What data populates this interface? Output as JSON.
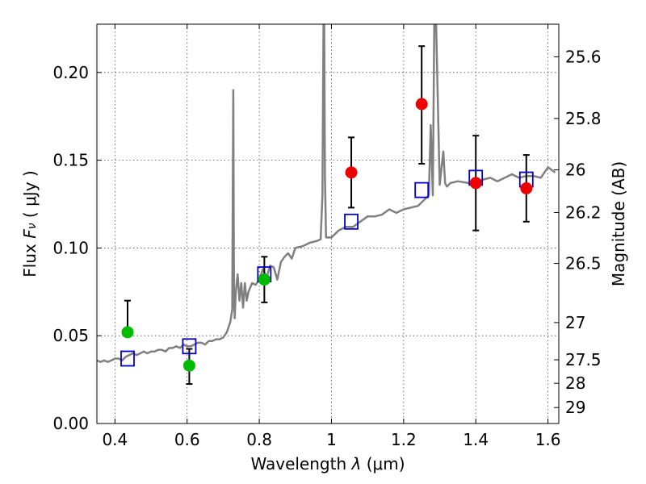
{
  "chart_data": {
    "type": "scatter",
    "xlabel": "Wavelength",
    "xlabel_symbol": "λ",
    "xlabel_unit": "(μm)",
    "ylabel": "Flux",
    "ylabel_symbol": "F",
    "ylabel_subscript": "ν",
    "ylabel_unit": "( μJy )",
    "y2label": "Magnitude (AB)",
    "xlim": [
      0.35,
      1.63
    ],
    "ylim": [
      0.0,
      0.2275
    ],
    "grid": true,
    "x_ticks": [
      0.4,
      0.6,
      0.8,
      1.0,
      1.2,
      1.4,
      1.6
    ],
    "x_tick_labels": [
      "0.4",
      "0.6",
      "0.8",
      "1",
      "1.2",
      "1.4",
      "1.6"
    ],
    "y_ticks": [
      0.0,
      0.05,
      0.1,
      0.15,
      0.2
    ],
    "y_tick_labels": [
      "0.00",
      "0.05",
      "0.10",
      "0.15",
      "0.20"
    ],
    "y2_ticks": [
      {
        "label": "25.6",
        "flux": 0.2089
      },
      {
        "label": "25.8",
        "flux": 0.1738
      },
      {
        "label": "26",
        "flux": 0.1445
      },
      {
        "label": "26.2",
        "flux": 0.1202
      },
      {
        "label": "26.5",
        "flux": 0.0912
      },
      {
        "label": "27",
        "flux": 0.0575
      },
      {
        "label": "27.5",
        "flux": 0.0363
      },
      {
        "label": "28",
        "flux": 0.0229
      },
      {
        "label": "29",
        "flux": 0.0091
      }
    ],
    "series": [
      {
        "kind": "line",
        "color": "#808080",
        "x": [
          0.35,
          0.36,
          0.37,
          0.38,
          0.39,
          0.4,
          0.41,
          0.42,
          0.43,
          0.44,
          0.45,
          0.46,
          0.47,
          0.48,
          0.49,
          0.5,
          0.51,
          0.52,
          0.53,
          0.54,
          0.55,
          0.56,
          0.57,
          0.58,
          0.59,
          0.6,
          0.61,
          0.62,
          0.63,
          0.64,
          0.65,
          0.66,
          0.67,
          0.68,
          0.69,
          0.7,
          0.71,
          0.72,
          0.725,
          0.728,
          0.73,
          0.732,
          0.735,
          0.74,
          0.745,
          0.75,
          0.755,
          0.76,
          0.765,
          0.77,
          0.78,
          0.79,
          0.8,
          0.81,
          0.82,
          0.83,
          0.84,
          0.85,
          0.86,
          0.87,
          0.88,
          0.89,
          0.9,
          0.92,
          0.94,
          0.96,
          0.97,
          0.975,
          0.978,
          0.98,
          0.982,
          0.985,
          0.99,
          1.0,
          1.02,
          1.04,
          1.06,
          1.08,
          1.1,
          1.12,
          1.14,
          1.16,
          1.18,
          1.2,
          1.22,
          1.24,
          1.26,
          1.27,
          1.275,
          1.278,
          1.281,
          1.285,
          1.29,
          1.3,
          1.31,
          1.315,
          1.32,
          1.33,
          1.35,
          1.38,
          1.4,
          1.42,
          1.44,
          1.46,
          1.48,
          1.5,
          1.52,
          1.54,
          1.56,
          1.58,
          1.6,
          1.62
        ],
        "y": [
          0.036,
          0.035,
          0.036,
          0.035,
          0.036,
          0.037,
          0.037,
          0.036,
          0.038,
          0.039,
          0.04,
          0.039,
          0.04,
          0.041,
          0.04,
          0.041,
          0.041,
          0.042,
          0.042,
          0.041,
          0.043,
          0.043,
          0.044,
          0.043,
          0.045,
          0.044,
          0.044,
          0.045,
          0.046,
          0.046,
          0.045,
          0.047,
          0.047,
          0.048,
          0.048,
          0.049,
          0.052,
          0.058,
          0.065,
          0.19,
          0.07,
          0.06,
          0.075,
          0.085,
          0.07,
          0.08,
          0.066,
          0.08,
          0.07,
          0.075,
          0.08,
          0.079,
          0.082,
          0.088,
          0.083,
          0.09,
          0.089,
          0.082,
          0.092,
          0.095,
          0.097,
          0.094,
          0.1,
          0.101,
          0.103,
          0.104,
          0.105,
          0.13,
          0.2275,
          0.2275,
          0.14,
          0.106,
          0.106,
          0.106,
          0.11,
          0.112,
          0.112,
          0.115,
          0.118,
          0.118,
          0.119,
          0.122,
          0.12,
          0.122,
          0.123,
          0.124,
          0.128,
          0.13,
          0.17,
          0.15,
          0.13,
          0.2275,
          0.2275,
          0.136,
          0.155,
          0.137,
          0.135,
          0.137,
          0.138,
          0.137,
          0.138,
          0.139,
          0.14,
          0.138,
          0.14,
          0.142,
          0.14,
          0.141,
          0.141,
          0.14,
          0.146,
          0.143
        ]
      },
      {
        "kind": "model-photometry",
        "color": "#0000cc",
        "marker": "square",
        "x": [
          0.435,
          0.606,
          0.814,
          1.055,
          1.25,
          1.4,
          1.54
        ],
        "y": [
          0.037,
          0.044,
          0.085,
          0.115,
          0.133,
          0.14,
          0.139
        ]
      },
      {
        "kind": "observed",
        "color": "#00bb00",
        "marker": "circle",
        "x": [
          0.435,
          0.606,
          0.814
        ],
        "y": [
          0.052,
          0.033,
          0.082
        ],
        "yerr_low": [
          null,
          0.0225,
          0.069
        ],
        "yerr_high": [
          0.07,
          0.0425,
          0.095
        ]
      },
      {
        "kind": "observed",
        "color": "#ee0000",
        "marker": "circle",
        "x": [
          1.055,
          1.25,
          1.4,
          1.54
        ],
        "y": [
          0.143,
          0.182,
          0.137,
          0.134
        ],
        "yerr_low": [
          0.123,
          0.148,
          0.11,
          0.115
        ],
        "yerr_high": [
          0.163,
          0.215,
          0.164,
          0.153
        ]
      }
    ]
  }
}
